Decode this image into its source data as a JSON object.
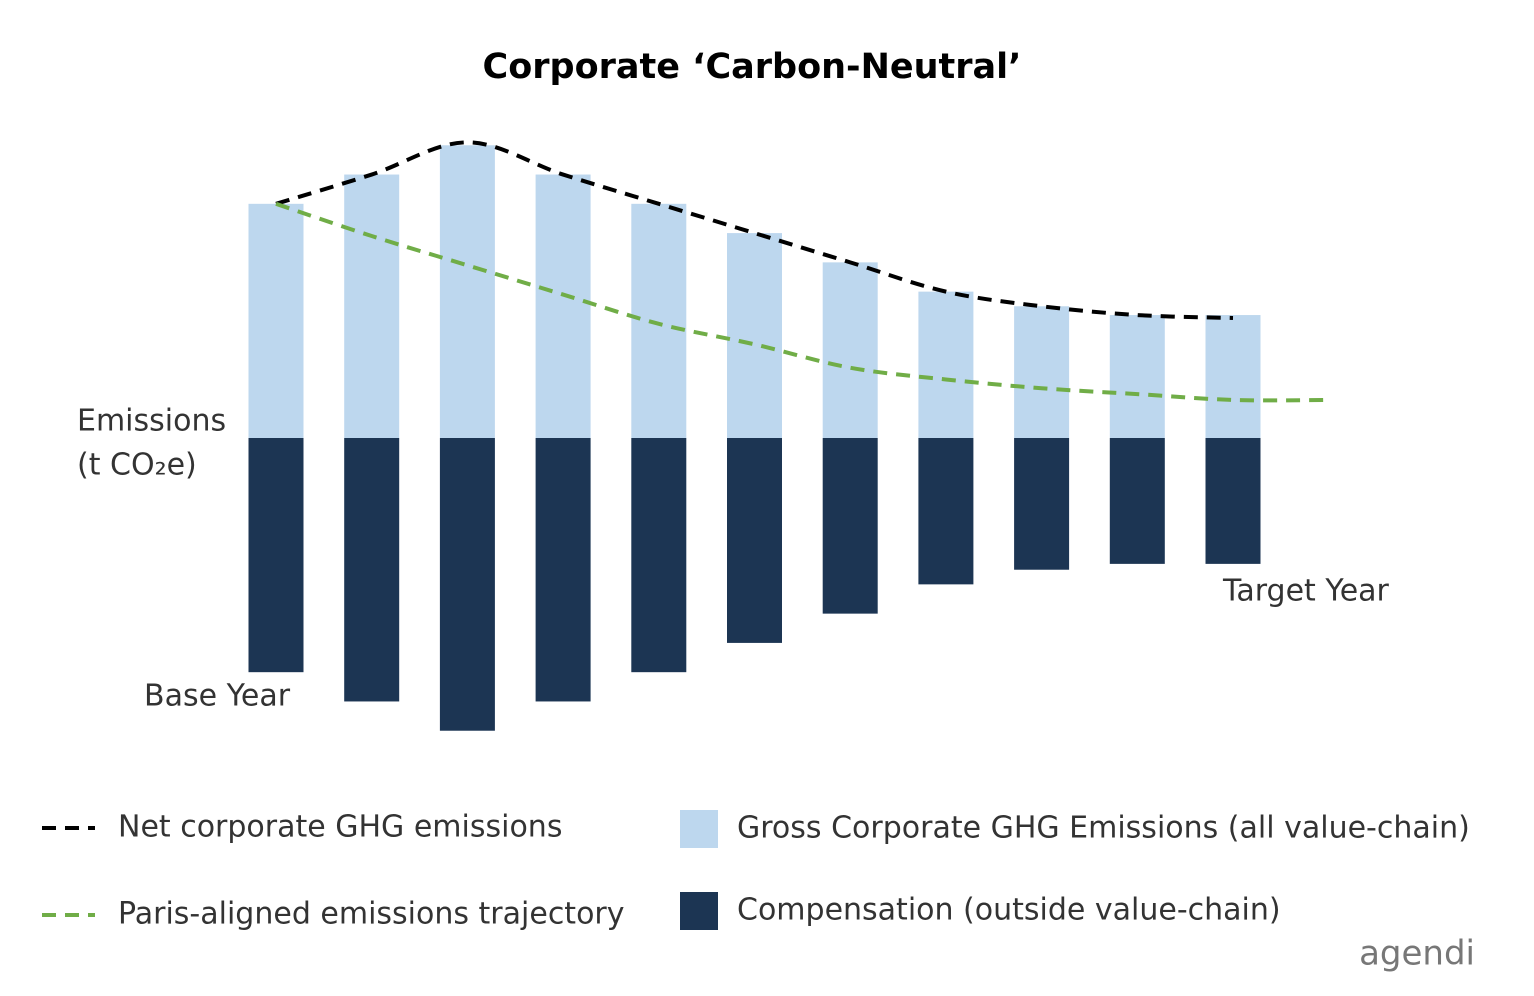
{
  "chart_data": {
    "type": "bar",
    "title": "Corporate ‘Carbon-Neutral’",
    "y_label": [
      "Emissions",
      "(t CO₂e)"
    ],
    "categories": [
      "Base Year",
      null,
      null,
      null,
      null,
      null,
      null,
      null,
      null,
      null,
      "Target Year",
      null
    ],
    "ylim": [
      -110,
      110
    ],
    "series": [
      {
        "name": "Net corporate GHG emissions",
        "type": "line",
        "dashed": true,
        "color": "#000000",
        "values": [
          80,
          90,
          101,
          90,
          80,
          70,
          60,
          50,
          45,
          42,
          41,
          null
        ]
      },
      {
        "name": "Paris-aligned emissions trajectory",
        "type": "line",
        "dashed": true,
        "color": "#70ad47",
        "values": [
          80,
          69,
          59,
          49,
          39,
          32,
          24,
          20,
          17,
          15,
          13,
          13
        ]
      },
      {
        "name": "Gross Corporate GHG Emissions (all value-chain)",
        "type": "bar",
        "color": "#bdd7ee",
        "values": [
          80,
          90,
          100,
          90,
          80,
          70,
          60,
          50,
          45,
          42,
          42,
          null
        ]
      },
      {
        "name": "Compensation (outside value-chain)",
        "type": "bar",
        "color": "#1c3553",
        "values": [
          -80,
          -90,
          -100,
          -90,
          -80,
          -70,
          -60,
          -50,
          -45,
          -43,
          -43,
          null
        ]
      }
    ],
    "logo": "agendi"
  }
}
